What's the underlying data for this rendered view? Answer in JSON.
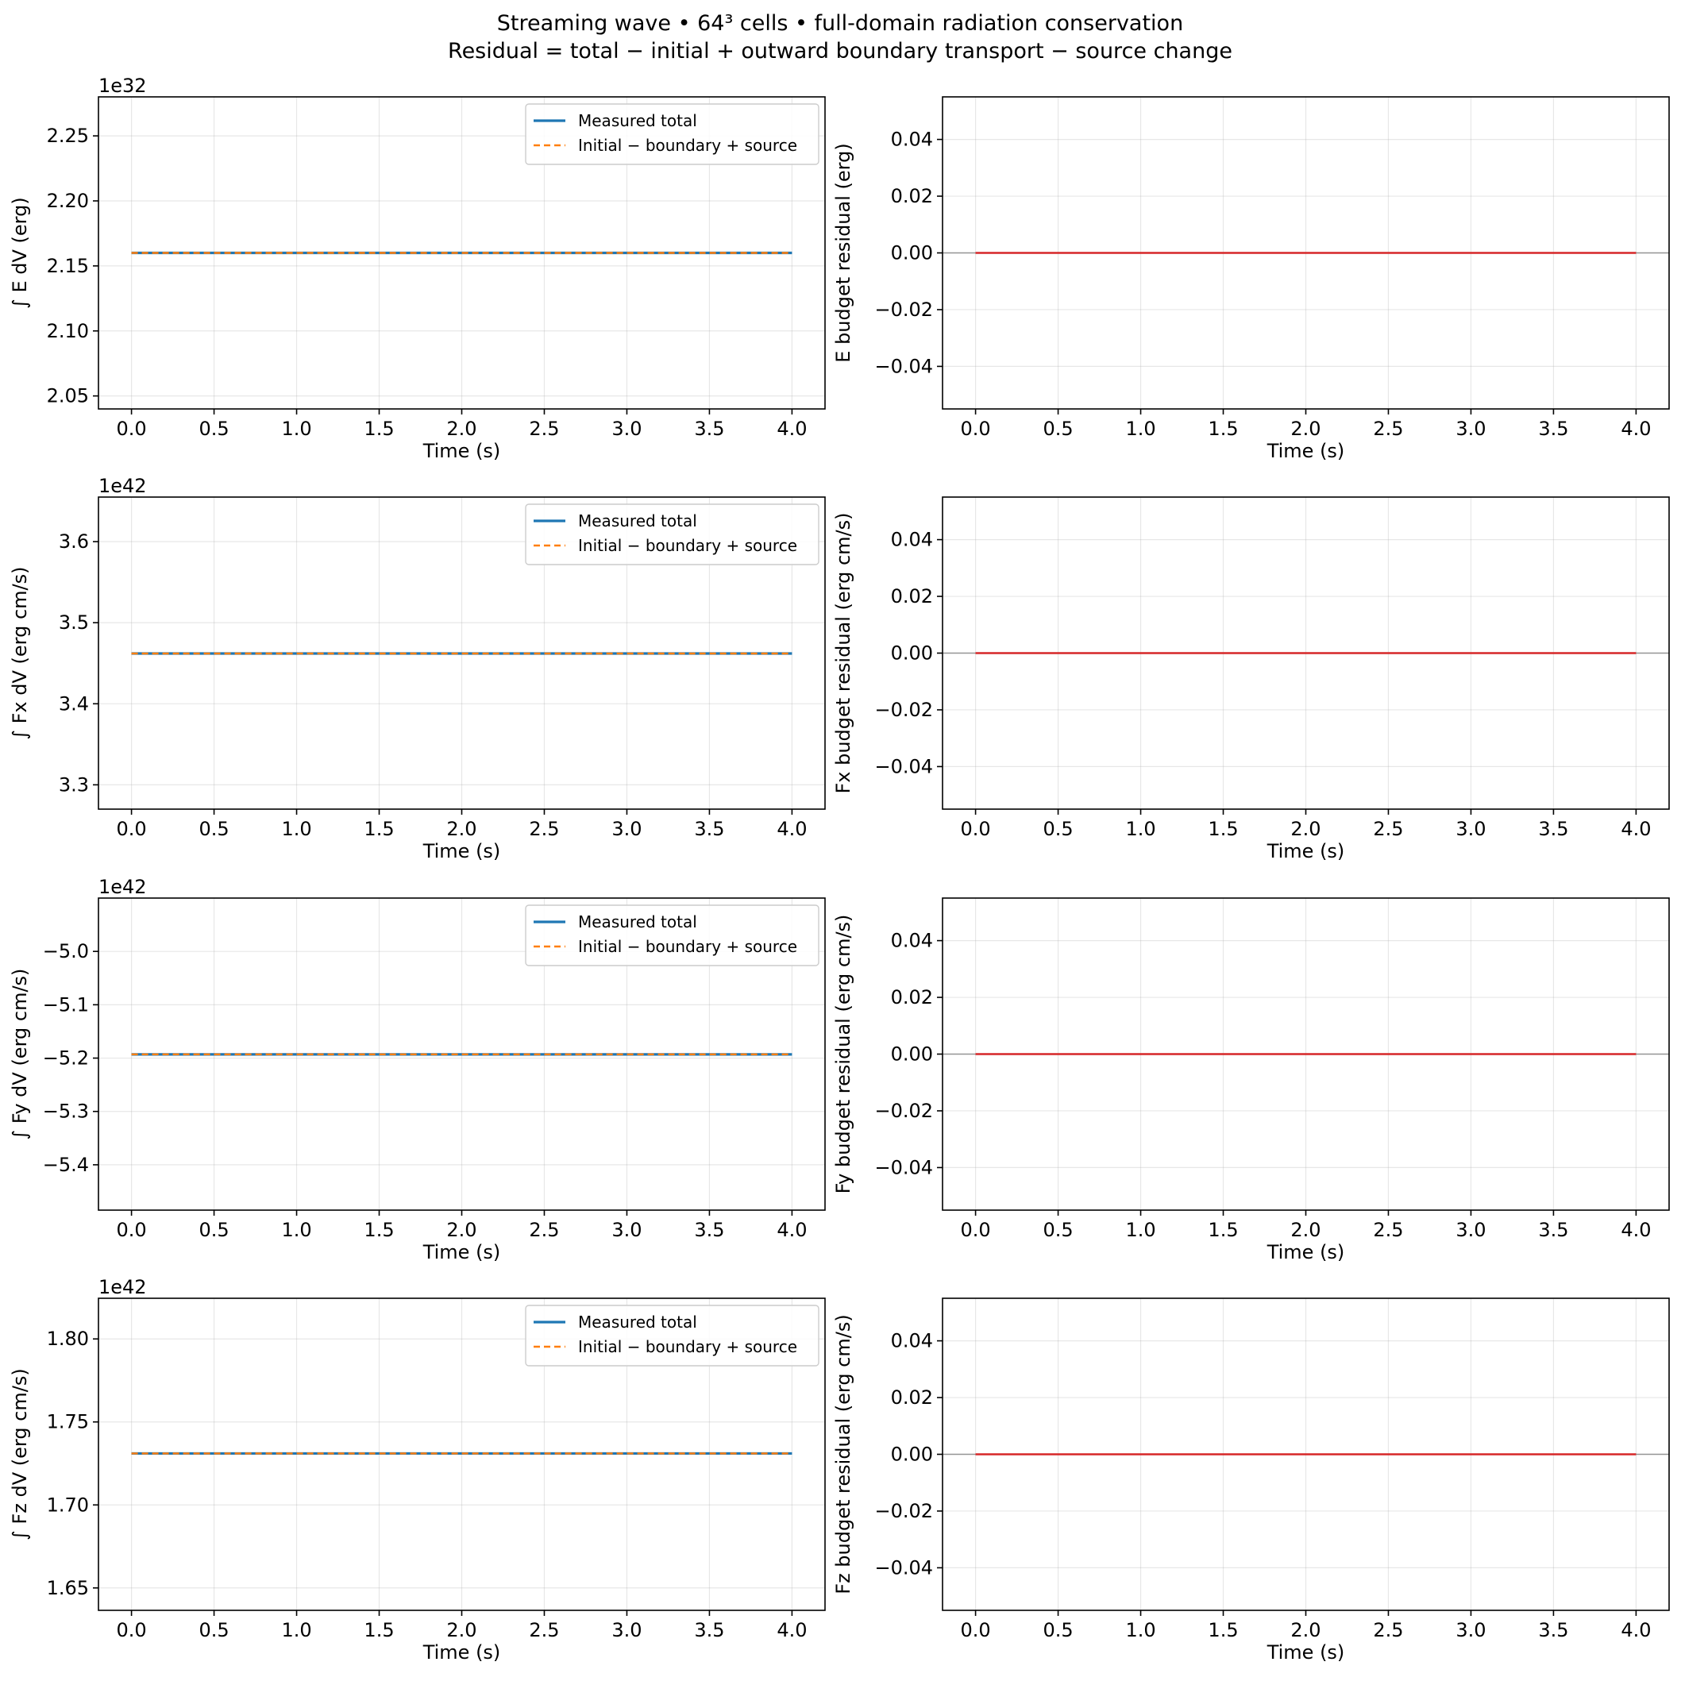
{
  "figure": {
    "title_lines": [
      "Streaming wave • 64³ cells • full-domain radiation conservation",
      "Residual = total − initial + outward boundary transport − source change"
    ]
  },
  "colors": {
    "measured": "#1f77b4",
    "predicted": "#ff7f0e",
    "residual": "#d62728",
    "zero_line": "#808080"
  },
  "chart_data": [
    {
      "type": "line",
      "panel": "E-total",
      "xlabel": "Time (s)",
      "ylabel": "∫ E dV (erg)",
      "offset_text": "1e32",
      "xlim": [
        -0.2,
        4.2
      ],
      "ylim": [
        2.04,
        2.28
      ],
      "xticks": [
        0.0,
        0.5,
        1.0,
        1.5,
        2.0,
        2.5,
        3.0,
        3.5,
        4.0
      ],
      "xtick_labels": [
        "0.0",
        "0.5",
        "1.0",
        "1.5",
        "2.0",
        "2.5",
        "3.0",
        "3.5",
        "4.0"
      ],
      "yticks": [
        2.05,
        2.1,
        2.15,
        2.2,
        2.25
      ],
      "ytick_labels": [
        "2.05",
        "2.10",
        "2.15",
        "2.20",
        "2.25"
      ],
      "grid": true,
      "legend": "top-right",
      "series": [
        {
          "name": "Measured total",
          "style": "solid",
          "x": [
            0.0,
            4.0
          ],
          "y": [
            2.16,
            2.16
          ]
        },
        {
          "name": "Initial − boundary + source",
          "style": "dashed",
          "x": [
            0.0,
            4.0
          ],
          "y": [
            2.16,
            2.16
          ]
        }
      ]
    },
    {
      "type": "line",
      "panel": "E-residual",
      "xlabel": "Time (s)",
      "ylabel": "E budget residual (erg)",
      "offset_text": "",
      "xlim": [
        -0.2,
        4.2
      ],
      "ylim": [
        -0.055,
        0.055
      ],
      "xticks": [
        0.0,
        0.5,
        1.0,
        1.5,
        2.0,
        2.5,
        3.0,
        3.5,
        4.0
      ],
      "xtick_labels": [
        "0.0",
        "0.5",
        "1.0",
        "1.5",
        "2.0",
        "2.5",
        "3.0",
        "3.5",
        "4.0"
      ],
      "yticks": [
        -0.04,
        -0.02,
        0.0,
        0.02,
        0.04
      ],
      "ytick_labels": [
        "−0.04",
        "−0.02",
        "0.00",
        "0.02",
        "0.04"
      ],
      "grid": true,
      "zero_line": true,
      "series": [
        {
          "style": "residual",
          "x": [
            0.0,
            4.0
          ],
          "y": [
            0.0,
            0.0
          ]
        }
      ]
    },
    {
      "type": "line",
      "panel": "Fx-total",
      "xlabel": "Time (s)",
      "ylabel": "∫ Fx dV (erg cm/s)",
      "offset_text": "1e42",
      "xlim": [
        -0.2,
        4.2
      ],
      "ylim": [
        3.27,
        3.655
      ],
      "xticks": [
        0.0,
        0.5,
        1.0,
        1.5,
        2.0,
        2.5,
        3.0,
        3.5,
        4.0
      ],
      "xtick_labels": [
        "0.0",
        "0.5",
        "1.0",
        "1.5",
        "2.0",
        "2.5",
        "3.0",
        "3.5",
        "4.0"
      ],
      "yticks": [
        3.3,
        3.4,
        3.5,
        3.6
      ],
      "ytick_labels": [
        "3.3",
        "3.4",
        "3.5",
        "3.6"
      ],
      "grid": true,
      "legend": "top-right",
      "series": [
        {
          "name": "Measured total",
          "style": "solid",
          "x": [
            0.0,
            4.0
          ],
          "y": [
            3.462,
            3.462
          ]
        },
        {
          "name": "Initial − boundary + source",
          "style": "dashed",
          "x": [
            0.0,
            4.0
          ],
          "y": [
            3.462,
            3.462
          ]
        }
      ]
    },
    {
      "type": "line",
      "panel": "Fx-residual",
      "xlabel": "Time (s)",
      "ylabel": "Fx budget residual (erg cm/s)",
      "offset_text": "",
      "xlim": [
        -0.2,
        4.2
      ],
      "ylim": [
        -0.055,
        0.055
      ],
      "xticks": [
        0.0,
        0.5,
        1.0,
        1.5,
        2.0,
        2.5,
        3.0,
        3.5,
        4.0
      ],
      "xtick_labels": [
        "0.0",
        "0.5",
        "1.0",
        "1.5",
        "2.0",
        "2.5",
        "3.0",
        "3.5",
        "4.0"
      ],
      "yticks": [
        -0.04,
        -0.02,
        0.0,
        0.02,
        0.04
      ],
      "ytick_labels": [
        "−0.04",
        "−0.02",
        "0.00",
        "0.02",
        "0.04"
      ],
      "grid": true,
      "zero_line": true,
      "series": [
        {
          "style": "residual",
          "x": [
            0.0,
            4.0
          ],
          "y": [
            0.0,
            0.0
          ]
        }
      ]
    },
    {
      "type": "line",
      "panel": "Fy-total",
      "xlabel": "Time (s)",
      "ylabel": "∫ Fy dV (erg cm/s)",
      "offset_text": "1e42",
      "xlim": [
        -0.2,
        4.2
      ],
      "ylim": [
        -5.485,
        -4.9
      ],
      "xticks": [
        0.0,
        0.5,
        1.0,
        1.5,
        2.0,
        2.5,
        3.0,
        3.5,
        4.0
      ],
      "xtick_labels": [
        "0.0",
        "0.5",
        "1.0",
        "1.5",
        "2.0",
        "2.5",
        "3.0",
        "3.5",
        "4.0"
      ],
      "yticks": [
        -5.4,
        -5.3,
        -5.2,
        -5.1,
        -5.0
      ],
      "ytick_labels": [
        "−5.4",
        "−5.3",
        "−5.2",
        "−5.1",
        "−5.0"
      ],
      "grid": true,
      "legend": "top-right",
      "series": [
        {
          "name": "Measured total",
          "style": "solid",
          "x": [
            0.0,
            4.0
          ],
          "y": [
            -5.193,
            -5.193
          ]
        },
        {
          "name": "Initial − boundary + source",
          "style": "dashed",
          "x": [
            0.0,
            4.0
          ],
          "y": [
            -5.193,
            -5.193
          ]
        }
      ]
    },
    {
      "type": "line",
      "panel": "Fy-residual",
      "xlabel": "Time (s)",
      "ylabel": "Fy budget residual (erg cm/s)",
      "offset_text": "",
      "xlim": [
        -0.2,
        4.2
      ],
      "ylim": [
        -0.055,
        0.055
      ],
      "xticks": [
        0.0,
        0.5,
        1.0,
        1.5,
        2.0,
        2.5,
        3.0,
        3.5,
        4.0
      ],
      "xtick_labels": [
        "0.0",
        "0.5",
        "1.0",
        "1.5",
        "2.0",
        "2.5",
        "3.0",
        "3.5",
        "4.0"
      ],
      "yticks": [
        -0.04,
        -0.02,
        0.0,
        0.02,
        0.04
      ],
      "ytick_labels": [
        "−0.04",
        "−0.02",
        "0.00",
        "0.02",
        "0.04"
      ],
      "grid": true,
      "zero_line": true,
      "series": [
        {
          "style": "residual",
          "x": [
            0.0,
            4.0
          ],
          "y": [
            0.0,
            0.0
          ]
        }
      ]
    },
    {
      "type": "line",
      "panel": "Fz-total",
      "xlabel": "Time (s)",
      "ylabel": "∫ Fz dV (erg cm/s)",
      "offset_text": "1e42",
      "xlim": [
        -0.2,
        4.2
      ],
      "ylim": [
        1.6365,
        1.8245
      ],
      "xticks": [
        0.0,
        0.5,
        1.0,
        1.5,
        2.0,
        2.5,
        3.0,
        3.5,
        4.0
      ],
      "xtick_labels": [
        "0.0",
        "0.5",
        "1.0",
        "1.5",
        "2.0",
        "2.5",
        "3.0",
        "3.5",
        "4.0"
      ],
      "yticks": [
        1.65,
        1.7,
        1.75,
        1.8
      ],
      "ytick_labels": [
        "1.65",
        "1.70",
        "1.75",
        "1.80"
      ],
      "grid": true,
      "legend": "top-right",
      "series": [
        {
          "name": "Measured total",
          "style": "solid",
          "x": [
            0.0,
            4.0
          ],
          "y": [
            1.731,
            1.731
          ]
        },
        {
          "name": "Initial − boundary + source",
          "style": "dashed",
          "x": [
            0.0,
            4.0
          ],
          "y": [
            1.731,
            1.731
          ]
        }
      ]
    },
    {
      "type": "line",
      "panel": "Fz-residual",
      "xlabel": "Time (s)",
      "ylabel": "Fz budget residual (erg cm/s)",
      "offset_text": "",
      "xlim": [
        -0.2,
        4.2
      ],
      "ylim": [
        -0.055,
        0.055
      ],
      "xticks": [
        0.0,
        0.5,
        1.0,
        1.5,
        2.0,
        2.5,
        3.0,
        3.5,
        4.0
      ],
      "xtick_labels": [
        "0.0",
        "0.5",
        "1.0",
        "1.5",
        "2.0",
        "2.5",
        "3.0",
        "3.5",
        "4.0"
      ],
      "yticks": [
        -0.04,
        -0.02,
        0.0,
        0.02,
        0.04
      ],
      "ytick_labels": [
        "−0.04",
        "−0.02",
        "0.00",
        "0.02",
        "0.04"
      ],
      "grid": true,
      "zero_line": true,
      "series": [
        {
          "style": "residual",
          "x": [
            0.0,
            4.0
          ],
          "y": [
            0.0,
            0.0
          ]
        }
      ]
    }
  ]
}
